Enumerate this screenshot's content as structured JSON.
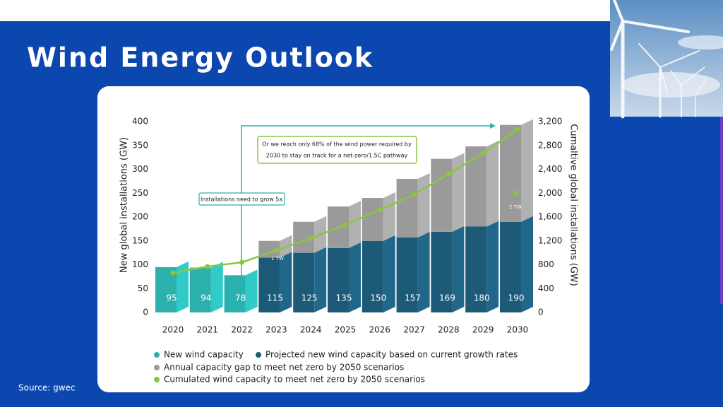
{
  "slide": {
    "title": "Wind Energy Outlook",
    "source": "Source: gwec"
  },
  "chart_data": {
    "type": "bar",
    "y_label": "New global installations (GW)",
    "y2_label": "Cumaltive global installations (GW)",
    "categories": [
      "2020",
      "2021",
      "2022",
      "2023",
      "2024",
      "2025",
      "2026",
      "2027",
      "2028",
      "2029",
      "2030"
    ],
    "series": [
      {
        "name": "New wind capacity",
        "color": "#2ab0ad",
        "values": [
          95,
          94,
          78,
          null,
          null,
          null,
          null,
          null,
          null,
          null,
          null
        ]
      },
      {
        "name": "Projected new wind capacity based on current growth rates",
        "color": "#1d5a78",
        "values": [
          null,
          null,
          null,
          115,
          125,
          135,
          150,
          157,
          169,
          180,
          190
        ]
      },
      {
        "name": "Annual capacity gap to meet net zero by 2050 scenarios",
        "color": "#9a9a9a",
        "values": [
          null,
          null,
          null,
          35,
          65,
          87,
          90,
          123,
          153,
          168,
          203
        ]
      },
      {
        "name": "Cumulated wind capacity to meet net zero by 2050 scenarios",
        "color": "#8cc63f",
        "type": "line",
        "axis": "y2",
        "values": [
          664,
          770,
          840,
          1043,
          1244,
          1470,
          1718,
          1979,
          2323,
          2667,
          3070
        ]
      }
    ],
    "ylim": [
      0,
      400
    ],
    "yticks": [
      0,
      50,
      100,
      150,
      200,
      250,
      300,
      350,
      400
    ],
    "y2lim": [
      0,
      3200
    ],
    "y2ticks": [
      0,
      400,
      800,
      {
        "value": 1200,
        "label": "1,200"
      },
      {
        "value": 1600,
        "label": "1,600"
      },
      {
        "value": 2000,
        "label": "2,000"
      },
      {
        "value": 2400,
        "label": "2,400"
      },
      {
        "value": 2800,
        "label": "2,800"
      },
      {
        "value": 3200,
        "label": "3,200"
      }
    ],
    "annotations": [
      {
        "text": "1 TW"
      },
      {
        "text": "2 TW",
        "value": 2000
      },
      {
        "text": "Installations need to grow 5x"
      },
      {
        "lines": [
          "Or we reach only 68% of the wind power required by",
          "2030 to stay on track for a net-zero/1.5C pathway"
        ]
      }
    ]
  }
}
